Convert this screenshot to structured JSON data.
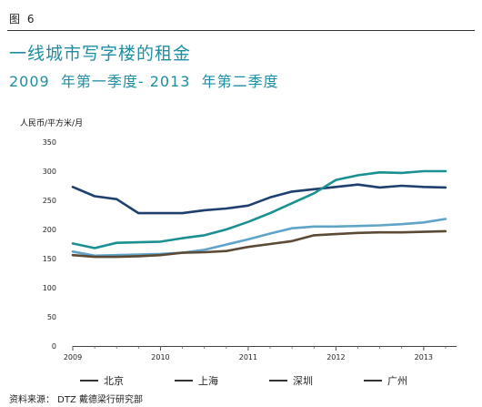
{
  "figure_label": "图 6",
  "title": "一线城市写字楼的租金",
  "subtitle": "2009  年第一季度- 2013  年第二季度",
  "unit_label": "人民币/平方米/月",
  "source": "资料来源： DTZ 戴德梁行研究部",
  "chart_data": {
    "type": "line",
    "xlabel": "",
    "ylabel": "人民币/平方米/月",
    "ylim": [
      0,
      350
    ],
    "yticks": [
      0,
      50,
      100,
      150,
      200,
      250,
      300,
      350
    ],
    "xlim": [
      2009.0,
      2013.375
    ],
    "xticks": [
      2009,
      2010,
      2011,
      2012,
      2013
    ],
    "xtick_labels": [
      "2009",
      "2010",
      "2011",
      "2012",
      "2013"
    ],
    "grid": false,
    "legend": "bottom",
    "x": [
      2009.0,
      2009.25,
      2009.5,
      2009.75,
      2010.0,
      2010.25,
      2010.5,
      2010.75,
      2011.0,
      2011.25,
      2011.5,
      2011.75,
      2012.0,
      2012.25,
      2012.5,
      2012.75,
      2013.0,
      2013.25
    ],
    "series": [
      {
        "name": "北京",
        "color": "#1f3f6e",
        "values": [
          273,
          257,
          252,
          228,
          228,
          228,
          233,
          236,
          241,
          255,
          265,
          269,
          273,
          277,
          272,
          275,
          273,
          272
        ]
      },
      {
        "name": "上海",
        "color": "#1a9090",
        "values": [
          176,
          168,
          177,
          178,
          179,
          185,
          190,
          200,
          213,
          228,
          245,
          262,
          285,
          293,
          298,
          297,
          300,
          300
        ]
      },
      {
        "name": "深圳",
        "color": "#5fa3c7",
        "values": [
          162,
          155,
          156,
          157,
          158,
          160,
          165,
          174,
          183,
          193,
          202,
          205,
          205,
          206,
          207,
          209,
          212,
          218
        ]
      },
      {
        "name": "广州",
        "color": "#5c4a36",
        "values": [
          156,
          153,
          153,
          154,
          156,
          160,
          161,
          163,
          170,
          175,
          180,
          190,
          192,
          194,
          195,
          195,
          196,
          197
        ]
      }
    ]
  }
}
